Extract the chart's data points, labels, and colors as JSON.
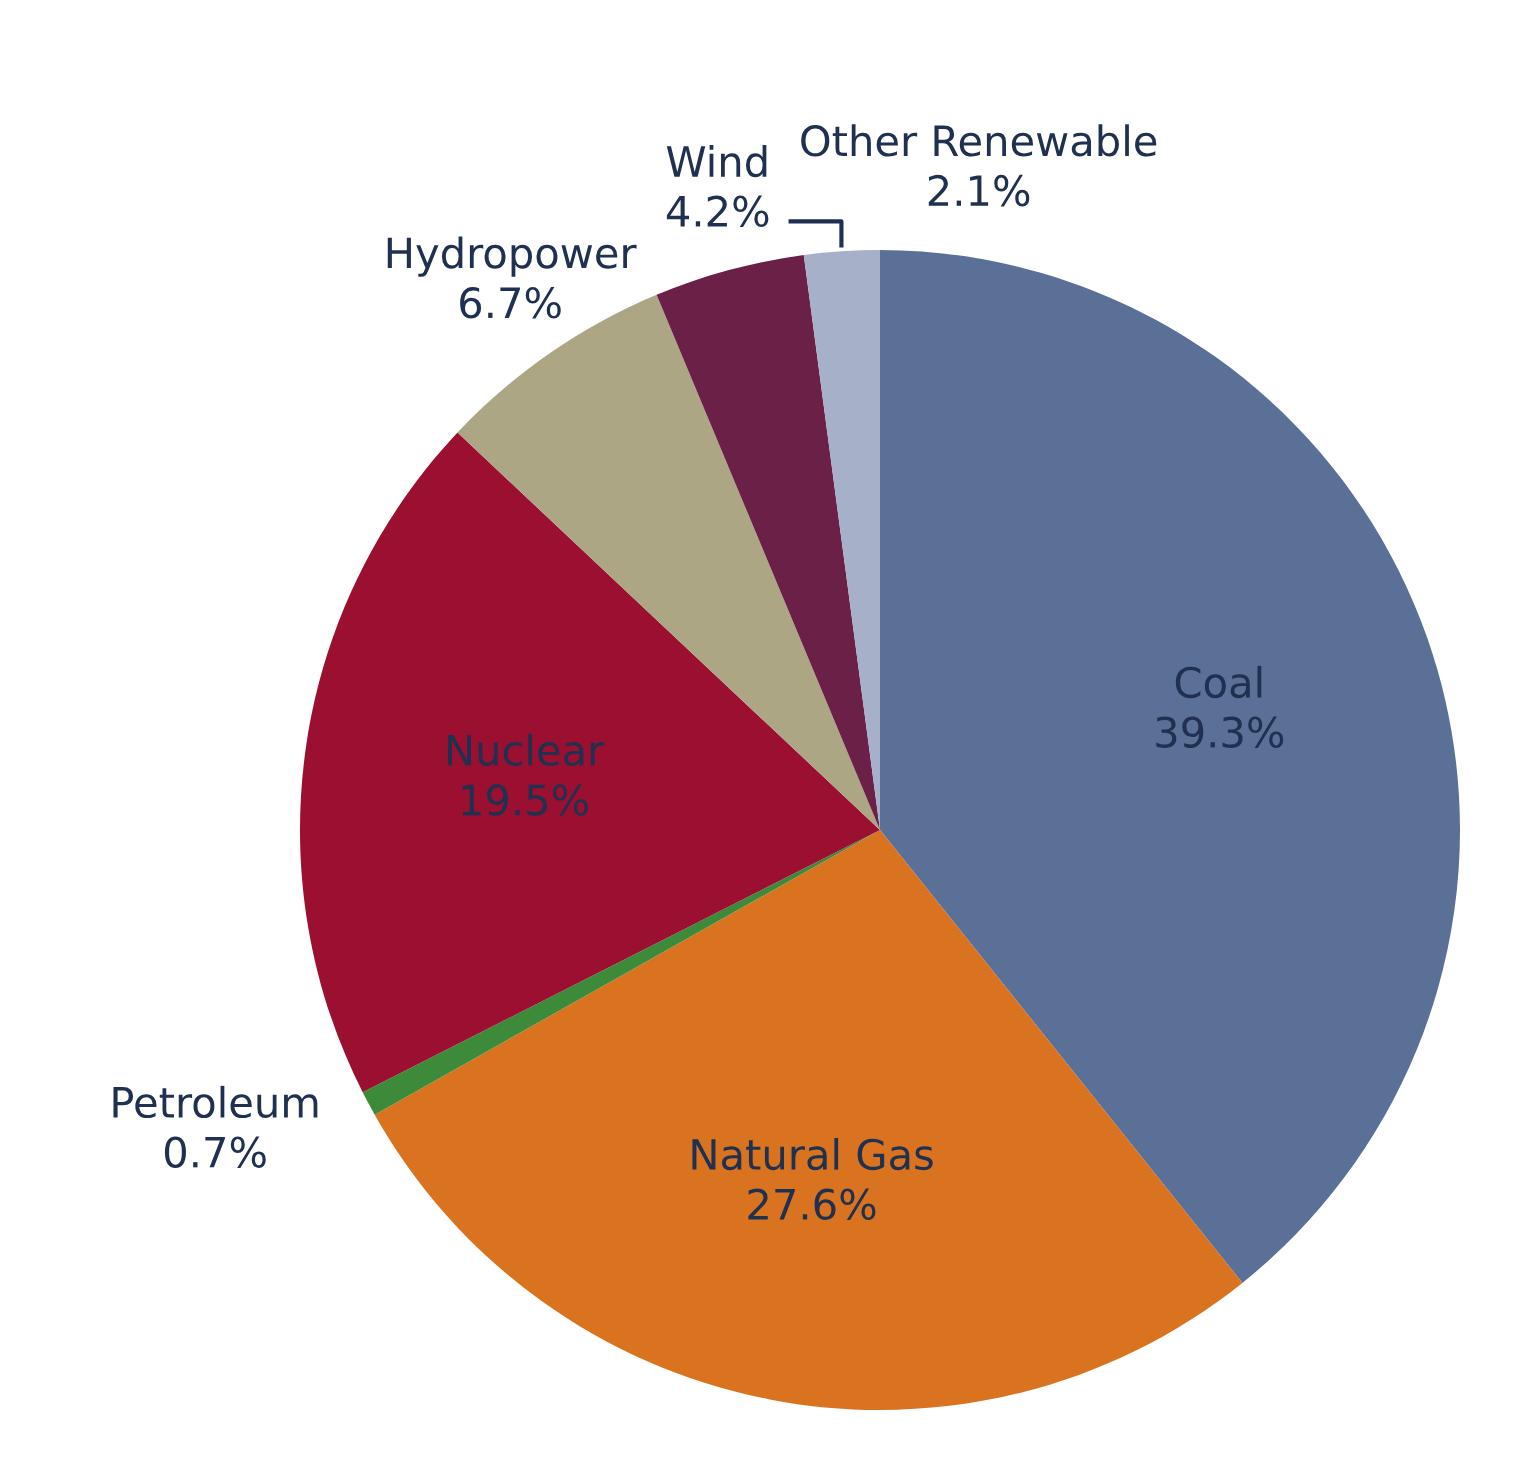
{
  "chart_data": {
    "type": "pie",
    "categories": [
      "Coal",
      "Natural Gas",
      "Petroleum",
      "Nuclear",
      "Hydropower",
      "Wind",
      "Other Renewable"
    ],
    "values": [
      39.3,
      27.6,
      0.7,
      19.5,
      6.7,
      4.2,
      2.1
    ],
    "value_labels": [
      "39.3%",
      "27.6%",
      "0.7%",
      "19.5%",
      "6.7%",
      "4.2%",
      "2.1%"
    ],
    "colors": [
      "#5a7096",
      "#d97320",
      "#3d8a3a",
      "#9b1030",
      "#ada684",
      "#6b2048",
      "#a6b0c8"
    ],
    "legend": false
  }
}
